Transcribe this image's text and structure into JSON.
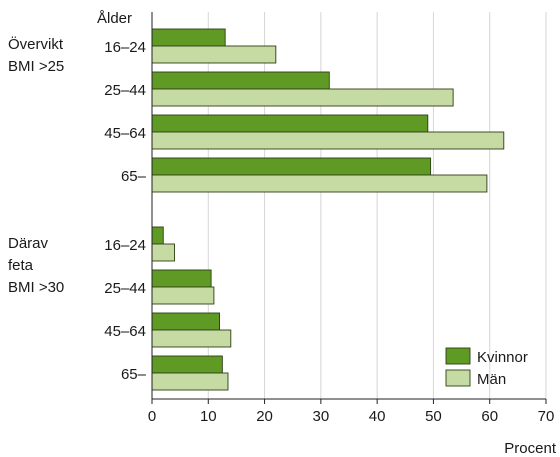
{
  "colors": {
    "kvinnor": "#5e9a24",
    "man": "#c6daa3",
    "bar_stroke": "#2e3d16",
    "grid": "#d6d6d6",
    "axis": "#222222"
  },
  "chart_data": {
    "type": "bar",
    "orientation": "horizontal",
    "title": "",
    "category_axis_title": "Ålder",
    "value_axis_title": "Procent",
    "xlim": [
      0,
      70
    ],
    "xticks": [
      0,
      10,
      20,
      30,
      40,
      50,
      60,
      70
    ],
    "grid": true,
    "legend_position": "bottom-right",
    "groups": [
      {
        "label": [
          "Övervikt",
          "BMI >25"
        ],
        "categories": [
          "16–24",
          "25–44",
          "45–64",
          "65–"
        ],
        "series": [
          {
            "name": "Kvinnor",
            "values": [
              13,
              31.5,
              49,
              49.5
            ]
          },
          {
            "name": "Män",
            "values": [
              22,
              53.5,
              62.5,
              59.5
            ]
          }
        ]
      },
      {
        "label": [
          "Därav",
          "feta",
          "BMI >30"
        ],
        "categories": [
          "16–24",
          "25–44",
          "45–64",
          "65–"
        ],
        "series": [
          {
            "name": "Kvinnor",
            "values": [
              2,
              10.5,
              12,
              12.5
            ]
          },
          {
            "name": "Män",
            "values": [
              4,
              11,
              14,
              13.5
            ]
          }
        ]
      }
    ]
  }
}
